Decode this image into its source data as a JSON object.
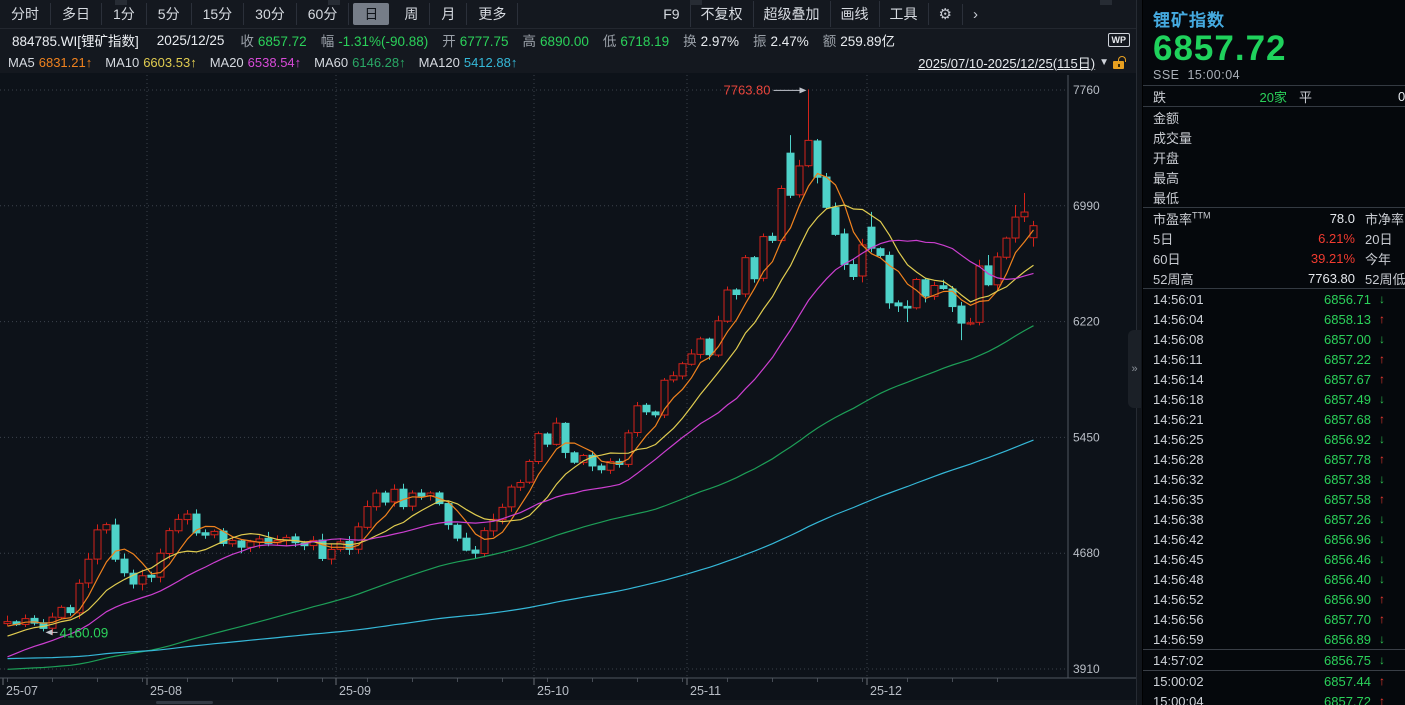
{
  "toolbar": {
    "period_tabs": [
      "分时",
      "多日",
      "1分",
      "5分",
      "15分",
      "30分",
      "60分",
      "日",
      "周",
      "月",
      "更多"
    ],
    "active_tab": "日",
    "right_buttons": [
      "F9",
      "不复权",
      "超级叠加",
      "画线",
      "工具"
    ],
    "gear_icon": "⚙",
    "chevron_icon": "›"
  },
  "quote_bar": {
    "symbol": "884785.WI[锂矿指数]",
    "date": "2025/12/25",
    "fields": [
      {
        "label": "收",
        "value": "6857.72",
        "color": "green"
      },
      {
        "label": "幅",
        "value": "-1.31%(-90.88)",
        "color": "green"
      },
      {
        "label": "开",
        "value": "6777.75",
        "color": "green"
      },
      {
        "label": "高",
        "value": "6890.00",
        "color": "green"
      },
      {
        "label": "低",
        "value": "6718.19",
        "color": "green"
      },
      {
        "label": "换",
        "value": "2.97%",
        "color": "white"
      },
      {
        "label": "振",
        "value": "2.47%",
        "color": "white"
      },
      {
        "label": "额",
        "value": "259.89亿",
        "color": "white"
      }
    ],
    "wp_badge": "WP"
  },
  "ma_bar": {
    "items": [
      {
        "label": "MA5",
        "value": "6831.21↑",
        "color": "#f0821e"
      },
      {
        "label": "MA10",
        "value": "6603.53↑",
        "color": "#e0cc50"
      },
      {
        "label": "MA20",
        "value": "6538.54↑",
        "color": "#d84ad8"
      },
      {
        "label": "MA60",
        "value": "6146.28↑",
        "color": "#2aa866"
      },
      {
        "label": "MA120",
        "value": "5412.88↑",
        "color": "#35b8d8"
      }
    ],
    "date_range": "2025/07/10-2025/12/25(115日)",
    "caret": "▼",
    "lock_icon": "unlocked-padlock"
  },
  "chart_data": {
    "type": "candlestick",
    "title": "锂矿指数 日K 2025/07/10-2025/12/25(115日)",
    "y_ticks": [
      7760,
      6990,
      6220,
      5450,
      4680,
      3910
    ],
    "y_range": [
      3910,
      7760
    ],
    "x_labels": [
      "25-07",
      "25-08",
      "25-09",
      "25-10",
      "25-11",
      "25-12"
    ],
    "month_start_indices": [
      0,
      16,
      37,
      59,
      76,
      96
    ],
    "closes": [
      4225,
      4205,
      4245,
      4215,
      4180,
      4255,
      4320,
      4285,
      4480,
      4640,
      4835,
      4870,
      4640,
      4550,
      4475,
      4530,
      4520,
      4680,
      4830,
      4905,
      4940,
      4815,
      4800,
      4825,
      4745,
      4765,
      4720,
      4755,
      4775,
      4745,
      4765,
      4785,
      4750,
      4730,
      4765,
      4645,
      4705,
      4755,
      4705,
      4855,
      4990,
      5080,
      5020,
      5105,
      4990,
      5080,
      5060,
      5080,
      5010,
      4870,
      4780,
      4700,
      4680,
      4830,
      4905,
      4985,
      5120,
      5150,
      5290,
      5475,
      5405,
      5545,
      5350,
      5285,
      5330,
      5260,
      5235,
      5290,
      5270,
      5480,
      5660,
      5620,
      5600,
      5830,
      5860,
      5940,
      6005,
      6105,
      6000,
      6225,
      6430,
      6400,
      6645,
      6505,
      6785,
      6760,
      7105,
      7060,
      7255,
      7425,
      7180,
      6980,
      6800,
      6600,
      6520,
      6730,
      6708,
      6660,
      6345,
      6325,
      6310,
      6500,
      6390,
      6460,
      6440,
      6320,
      6210,
      6212,
      6590,
      6465,
      6650,
      6775,
      6915,
      6948.6,
      6857.72
    ],
    "special_candles": {
      "4": {
        "low": 4160.09
      },
      "87": {
        "open": 7340,
        "high": 7460
      },
      "89": {
        "high": 7763.8
      },
      "96": {
        "open": 6848,
        "high": 6950
      },
      "100": {
        "low": 6217
      },
      "106": {
        "low": 6097
      },
      "109": {
        "high": 6663
      },
      "112": {
        "high": 6995
      },
      "113": {
        "high": 7075
      },
      "114": {
        "open": 6777.75,
        "high": 6890.0,
        "low": 6718.19,
        "close": 6857.72
      }
    },
    "annotations": [
      {
        "text": "7763.80",
        "index": 89,
        "price": 7763.8,
        "color": "#e8453c",
        "arrow": "right"
      },
      {
        "text": "4160.09",
        "index": 4,
        "price": 4160.09,
        "color": "#2bd15a",
        "arrow": "left"
      }
    ],
    "ma_series": [
      {
        "name": "MA5",
        "period": 5,
        "color": "#f0821e"
      },
      {
        "name": "MA10",
        "period": 10,
        "color": "#e0cc50"
      },
      {
        "name": "MA20",
        "period": 20,
        "color": "#cc3fd0"
      },
      {
        "name": "MA60",
        "period": 60,
        "color": "#1d9e57"
      },
      {
        "name": "MA120",
        "period": 120,
        "color": "#35b8d8"
      }
    ],
    "up_color": "#d2231a",
    "down_color": "#4ed2c9",
    "grid": true
  },
  "side_panel": {
    "title": "锂矿指数",
    "price": "6857.72",
    "exchange": "SSE",
    "time": "15:00:04",
    "summary_row": {
      "label1": "跌",
      "value1": "20家",
      "label2": "平",
      "value2": "0"
    },
    "stat_labels": [
      "金额",
      "成交量",
      "开盘",
      "最高",
      "最低"
    ],
    "ratio_rows": [
      {
        "label": "市盈率",
        "sup": "TTM",
        "value": "78.0",
        "value_color": "white",
        "label2": "市净率"
      },
      {
        "label": "5日",
        "sup": "",
        "value": "6.21%",
        "value_color": "red",
        "label2": "20日"
      },
      {
        "label": "60日",
        "sup": "",
        "value": "39.21%",
        "value_color": "red",
        "label2": "今年"
      },
      {
        "label": "52周高",
        "sup": "",
        "value": "7763.80",
        "value_color": "white",
        "label2": "52周低"
      }
    ],
    "ticks": [
      {
        "time": "14:56:01",
        "price": "6856.71",
        "dir": "down"
      },
      {
        "time": "14:56:04",
        "price": "6858.13",
        "dir": "up"
      },
      {
        "time": "14:56:08",
        "price": "6857.00",
        "dir": "down"
      },
      {
        "time": "14:56:11",
        "price": "6857.22",
        "dir": "up"
      },
      {
        "time": "14:56:14",
        "price": "6857.67",
        "dir": "up"
      },
      {
        "time": "14:56:18",
        "price": "6857.49",
        "dir": "down"
      },
      {
        "time": "14:56:21",
        "price": "6857.68",
        "dir": "up"
      },
      {
        "time": "14:56:25",
        "price": "6856.92",
        "dir": "down"
      },
      {
        "time": "14:56:28",
        "price": "6857.78",
        "dir": "up"
      },
      {
        "time": "14:56:32",
        "price": "6857.38",
        "dir": "down"
      },
      {
        "time": "14:56:35",
        "price": "6857.58",
        "dir": "up"
      },
      {
        "time": "14:56:38",
        "price": "6857.26",
        "dir": "down"
      },
      {
        "time": "14:56:42",
        "price": "6856.96",
        "dir": "down"
      },
      {
        "time": "14:56:45",
        "price": "6856.46",
        "dir": "down"
      },
      {
        "time": "14:56:48",
        "price": "6856.40",
        "dir": "down"
      },
      {
        "time": "14:56:52",
        "price": "6856.90",
        "dir": "up"
      },
      {
        "time": "14:56:56",
        "price": "6857.70",
        "dir": "up"
      },
      {
        "time": "14:56:59",
        "price": "6856.89",
        "dir": "down"
      },
      {
        "time": "14:57:02",
        "price": "6856.75",
        "dir": "down",
        "highlight": true
      },
      {
        "time": "15:00:02",
        "price": "6857.44",
        "dir": "up"
      },
      {
        "time": "15:00:04",
        "price": "6857.72",
        "dir": "up"
      }
    ],
    "arrow_up": "↑",
    "arrow_down": "↓"
  }
}
